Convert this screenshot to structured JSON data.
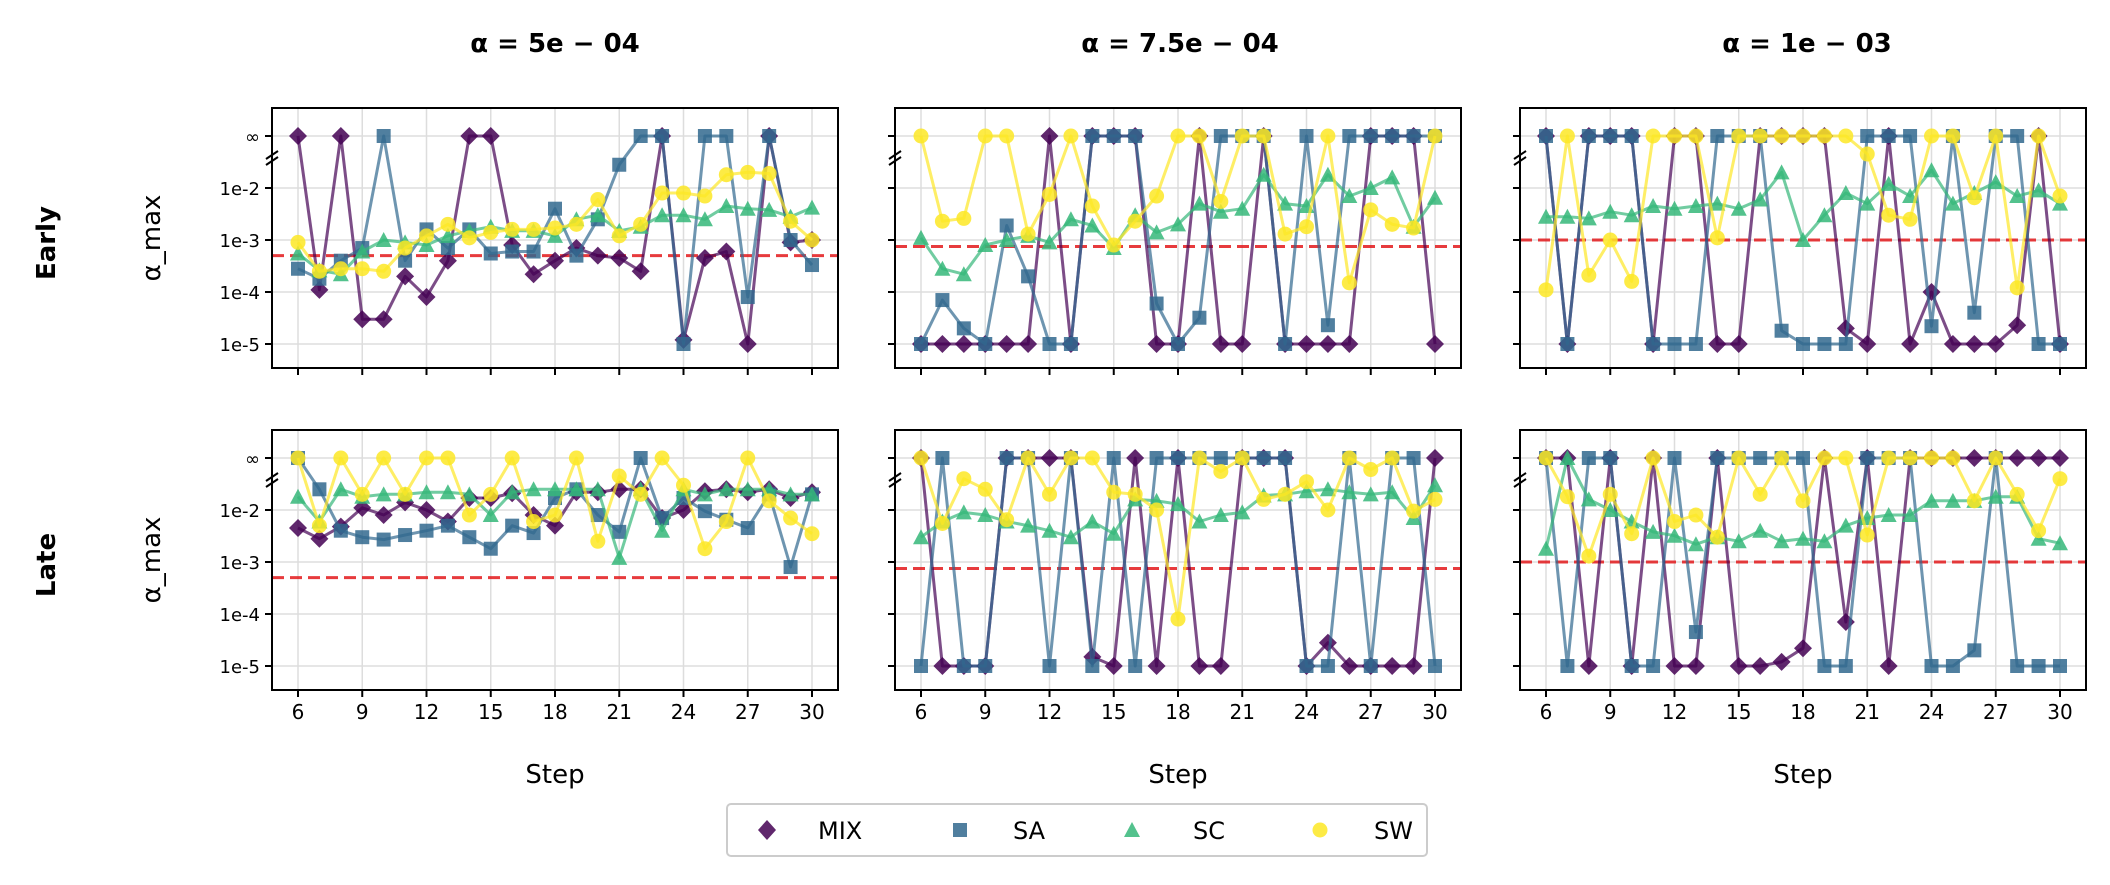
{
  "chart_data": {
    "type": "line",
    "x": [
      6,
      7,
      8,
      9,
      10,
      11,
      12,
      13,
      14,
      15,
      16,
      17,
      18,
      19,
      20,
      21,
      22,
      23,
      24,
      25,
      26,
      27,
      28,
      29,
      30
    ],
    "xlabel": "Step",
    "ylabel": "α_max",
    "x_ticks": [
      6,
      9,
      12,
      15,
      18,
      21,
      24,
      27,
      30
    ],
    "y_ticks": [
      {
        "label": "1e-5",
        "value": 1e-05
      },
      {
        "label": "1e-4",
        "value": 0.0001
      },
      {
        "label": "1e-3",
        "value": 0.001
      },
      {
        "label": "1e-2",
        "value": 0.01
      },
      {
        "label": "∞",
        "value": "inf"
      }
    ],
    "column_titles": [
      "α = 5e − 04",
      "α = 7.5e − 04",
      "α = 1e − 03"
    ],
    "alpha_values": [
      0.0005,
      0.00075,
      0.001
    ],
    "row_labels": [
      "Early",
      "Late"
    ],
    "legend": [
      "MIX",
      "SA",
      "SC",
      "SW"
    ],
    "series_colors": {
      "MIX": "#440154",
      "SA": "#31688e",
      "SC": "#35b779",
      "SW": "#fde725"
    },
    "reference_line_color": "#e31a1c",
    "panels": [
      {
        "row": "Early",
        "alpha": 0.0005,
        "series": {
          "MIX": [
            "inf",
            0.00011,
            "inf",
            3e-05,
            3e-05,
            0.0002,
            8e-05,
            0.0004,
            "inf",
            "inf",
            0.0008,
            0.00022,
            0.0004,
            0.0007,
            0.0005,
            0.00045,
            0.00025,
            "inf",
            1.2e-05,
            0.00045,
            0.0006,
            1e-05,
            "inf",
            0.0009,
            0.001
          ],
          "SA": [
            0.00028,
            0.00018,
            0.0004,
            0.0007,
            "inf",
            0.0004,
            0.0016,
            0.0007,
            0.0016,
            0.00055,
            0.0006,
            0.0006,
            0.004,
            0.0005,
            0.0025,
            0.028,
            "inf",
            "inf",
            1e-05,
            "inf",
            "inf",
            8e-05,
            "inf",
            0.001,
            0.00033
          ],
          "SC": [
            0.00055,
            0.00026,
            0.00022,
            0.0006,
            0.001,
            0.0009,
            0.0008,
            0.0012,
            0.0015,
            0.0018,
            0.0015,
            0.0015,
            0.0012,
            0.0025,
            0.003,
            0.0015,
            0.0018,
            0.003,
            0.003,
            0.0025,
            0.0045,
            0.004,
            0.0038,
            0.0028,
            0.0042
          ],
          "SW": [
            0.0009,
            0.00025,
            0.00028,
            0.00028,
            0.00025,
            0.0007,
            0.0012,
            0.002,
            0.0011,
            0.0014,
            0.0016,
            0.0016,
            0.0017,
            0.002,
            0.006,
            0.0012,
            0.002,
            0.008,
            0.008,
            0.007,
            0.018,
            0.02,
            0.019,
            0.0023,
            0.001
          ]
        }
      },
      {
        "row": "Early",
        "alpha": 0.00075,
        "series": {
          "MIX": [
            1e-05,
            1e-05,
            1e-05,
            1e-05,
            1e-05,
            1e-05,
            "inf",
            1e-05,
            "inf",
            "inf",
            "inf",
            1e-05,
            1e-05,
            "inf",
            1e-05,
            1e-05,
            "inf",
            1e-05,
            1e-05,
            1e-05,
            1e-05,
            "inf",
            "inf",
            "inf",
            1e-05
          ],
          "SA": [
            1e-05,
            7e-05,
            2e-05,
            1e-05,
            0.0019,
            0.0002,
            1e-05,
            1e-05,
            "inf",
            "inf",
            "inf",
            6e-05,
            1e-05,
            3.2e-05,
            "inf",
            "inf",
            "inf",
            1e-05,
            "inf",
            2.3e-05,
            "inf",
            "inf",
            "inf",
            "inf",
            "inf"
          ],
          "SC": [
            0.0011,
            0.00028,
            0.00022,
            0.0008,
            0.001,
            0.0012,
            0.0009,
            0.0025,
            0.0019,
            0.0007,
            0.003,
            0.0014,
            0.002,
            0.005,
            0.0035,
            0.004,
            0.018,
            0.005,
            0.0045,
            0.018,
            0.007,
            0.01,
            0.016,
            0.0018,
            0.0065
          ],
          "SW": [
            "inf",
            0.0023,
            0.0026,
            "inf",
            "inf",
            0.0013,
            0.0075,
            "inf",
            0.0045,
            0.0008,
            0.0023,
            0.007,
            "inf",
            "inf",
            0.0055,
            "inf",
            "inf",
            0.0013,
            0.0018,
            "inf",
            0.00015,
            0.0038,
            0.002,
            0.0017,
            "inf"
          ]
        }
      },
      {
        "row": "Early",
        "alpha": 0.001,
        "series": {
          "MIX": [
            "inf",
            1e-05,
            "inf",
            "inf",
            "inf",
            1e-05,
            "inf",
            "inf",
            1e-05,
            1e-05,
            "inf",
            "inf",
            "inf",
            "inf",
            2e-05,
            1e-05,
            "inf",
            1e-05,
            0.0001,
            1e-05,
            1e-05,
            1e-05,
            2.3e-05,
            "inf",
            1e-05
          ],
          "SA": [
            "inf",
            1e-05,
            "inf",
            "inf",
            "inf",
            1e-05,
            1e-05,
            1e-05,
            "inf",
            "inf",
            "inf",
            1.8e-05,
            1e-05,
            1e-05,
            1e-05,
            "inf",
            "inf",
            "inf",
            2.2e-05,
            "inf",
            4e-05,
            "inf",
            "inf",
            1e-05,
            1e-05
          ],
          "SC": [
            0.0028,
            0.0028,
            0.0026,
            0.0035,
            0.003,
            0.0045,
            0.004,
            0.0045,
            0.005,
            0.004,
            0.006,
            0.02,
            0.001,
            0.003,
            0.008,
            0.005,
            0.012,
            0.007,
            0.022,
            0.005,
            0.008,
            0.013,
            0.007,
            0.009,
            0.005
          ],
          "SW": [
            0.00011,
            "inf",
            0.00021,
            0.001,
            0.00016,
            "inf",
            "inf",
            "inf",
            0.0011,
            "inf",
            "inf",
            "inf",
            "inf",
            "inf",
            "inf",
            0.045,
            0.003,
            0.0025,
            "inf",
            "inf",
            0.0065,
            "inf",
            0.00012,
            "inf",
            0.007
          ]
        }
      },
      {
        "row": "Late",
        "alpha": 0.0005,
        "series": {
          "MIX": [
            0.0045,
            0.0028,
            0.0048,
            0.011,
            0.008,
            0.014,
            0.01,
            0.006,
            0.017,
            0.017,
            0.021,
            0.008,
            0.005,
            0.022,
            0.022,
            0.025,
            0.025,
            0.007,
            0.01,
            0.023,
            0.025,
            0.022,
            0.025,
            0.017,
            0.022
          ],
          "SA": [
            "inf",
            0.025,
            0.004,
            0.003,
            0.0027,
            0.0033,
            0.004,
            0.005,
            0.003,
            0.0018,
            0.005,
            0.0036,
            0.017,
            0.025,
            0.008,
            0.0038,
            "inf",
            0.007,
            0.017,
            0.0095,
            0.0065,
            0.0045,
            0.02,
            0.0008,
            0.02
          ],
          "SC": [
            0.018,
            0.006,
            0.025,
            0.018,
            0.02,
            0.02,
            0.022,
            0.022,
            0.02,
            0.008,
            0.022,
            0.025,
            0.025,
            0.025,
            0.025,
            0.0012,
            0.025,
            0.004,
            0.025,
            0.02,
            0.025,
            0.025,
            0.025,
            0.02,
            0.02
          ],
          "SW": [
            "inf",
            0.005,
            "inf",
            0.02,
            "inf",
            0.02,
            "inf",
            "inf",
            0.008,
            0.02,
            "inf",
            0.006,
            0.008,
            "inf",
            0.0025,
            0.045,
            0.02,
            "inf",
            0.03,
            0.0018,
            0.006,
            "inf",
            0.015,
            0.007,
            0.0035
          ]
        }
      },
      {
        "row": "Late",
        "alpha": 0.00075,
        "series": {
          "MIX": [
            "inf",
            1e-05,
            1e-05,
            1e-05,
            "inf",
            "inf",
            "inf",
            "inf",
            1.5e-05,
            1e-05,
            "inf",
            1e-05,
            "inf",
            1e-05,
            1e-05,
            "inf",
            "inf",
            "inf",
            1e-05,
            2.8e-05,
            1e-05,
            1e-05,
            1e-05,
            1e-05,
            "inf"
          ],
          "SA": [
            1e-05,
            "inf",
            1e-05,
            1e-05,
            "inf",
            "inf",
            1e-05,
            "inf",
            1e-05,
            "inf",
            1e-05,
            "inf",
            "inf",
            "inf",
            "inf",
            "inf",
            "inf",
            "inf",
            1e-05,
            1e-05,
            "inf",
            1e-05,
            "inf",
            "inf",
            1e-05
          ],
          "SC": [
            0.003,
            0.006,
            0.009,
            0.008,
            0.006,
            0.005,
            0.004,
            0.003,
            0.006,
            0.0035,
            0.016,
            0.015,
            0.013,
            0.006,
            0.008,
            0.009,
            0.019,
            0.02,
            0.023,
            0.025,
            0.022,
            0.02,
            0.022,
            0.007,
            0.03
          ],
          "SW": [
            "inf",
            0.0055,
            0.04,
            0.025,
            0.0065,
            "inf",
            0.02,
            "inf",
            "inf",
            0.022,
            0.02,
            0.01,
            8e-05,
            "inf",
            0.055,
            "inf",
            0.016,
            0.02,
            0.035,
            0.01,
            "inf",
            0.06,
            "inf",
            0.0095,
            0.016
          ]
        }
      },
      {
        "row": "Late",
        "alpha": 0.001,
        "series": {
          "MIX": [
            "inf",
            "inf",
            1e-05,
            "inf",
            1e-05,
            "inf",
            1e-05,
            1e-05,
            "inf",
            1e-05,
            1e-05,
            1.2e-05,
            2.2e-05,
            "inf",
            7e-05,
            "inf",
            1e-05,
            "inf",
            "inf",
            "inf",
            "inf",
            "inf",
            "inf",
            "inf",
            "inf"
          ],
          "SA": [
            "inf",
            1e-05,
            "inf",
            "inf",
            1e-05,
            1e-05,
            "inf",
            4.5e-05,
            "inf",
            "inf",
            "inf",
            "inf",
            "inf",
            1e-05,
            1e-05,
            "inf",
            "inf",
            "inf",
            1e-05,
            1e-05,
            2e-05,
            "inf",
            1e-05,
            1e-05,
            1e-05
          ],
          "SC": [
            0.0018,
            "inf",
            0.016,
            0.01,
            0.006,
            0.0038,
            0.0032,
            0.0022,
            0.003,
            0.0025,
            0.004,
            0.0025,
            0.0028,
            0.0025,
            0.005,
            0.007,
            0.008,
            0.008,
            0.015,
            0.015,
            0.015,
            0.018,
            0.018,
            0.0028,
            0.0023
          ],
          "SW": [
            "inf",
            0.018,
            0.0013,
            0.02,
            0.0035,
            "inf",
            0.006,
            0.008,
            0.003,
            "inf",
            0.02,
            "inf",
            0.015,
            "inf",
            "inf",
            0.0033,
            "inf",
            "inf",
            "inf",
            "inf",
            0.015,
            "inf",
            0.02,
            0.004,
            0.04
          ]
        }
      }
    ]
  }
}
